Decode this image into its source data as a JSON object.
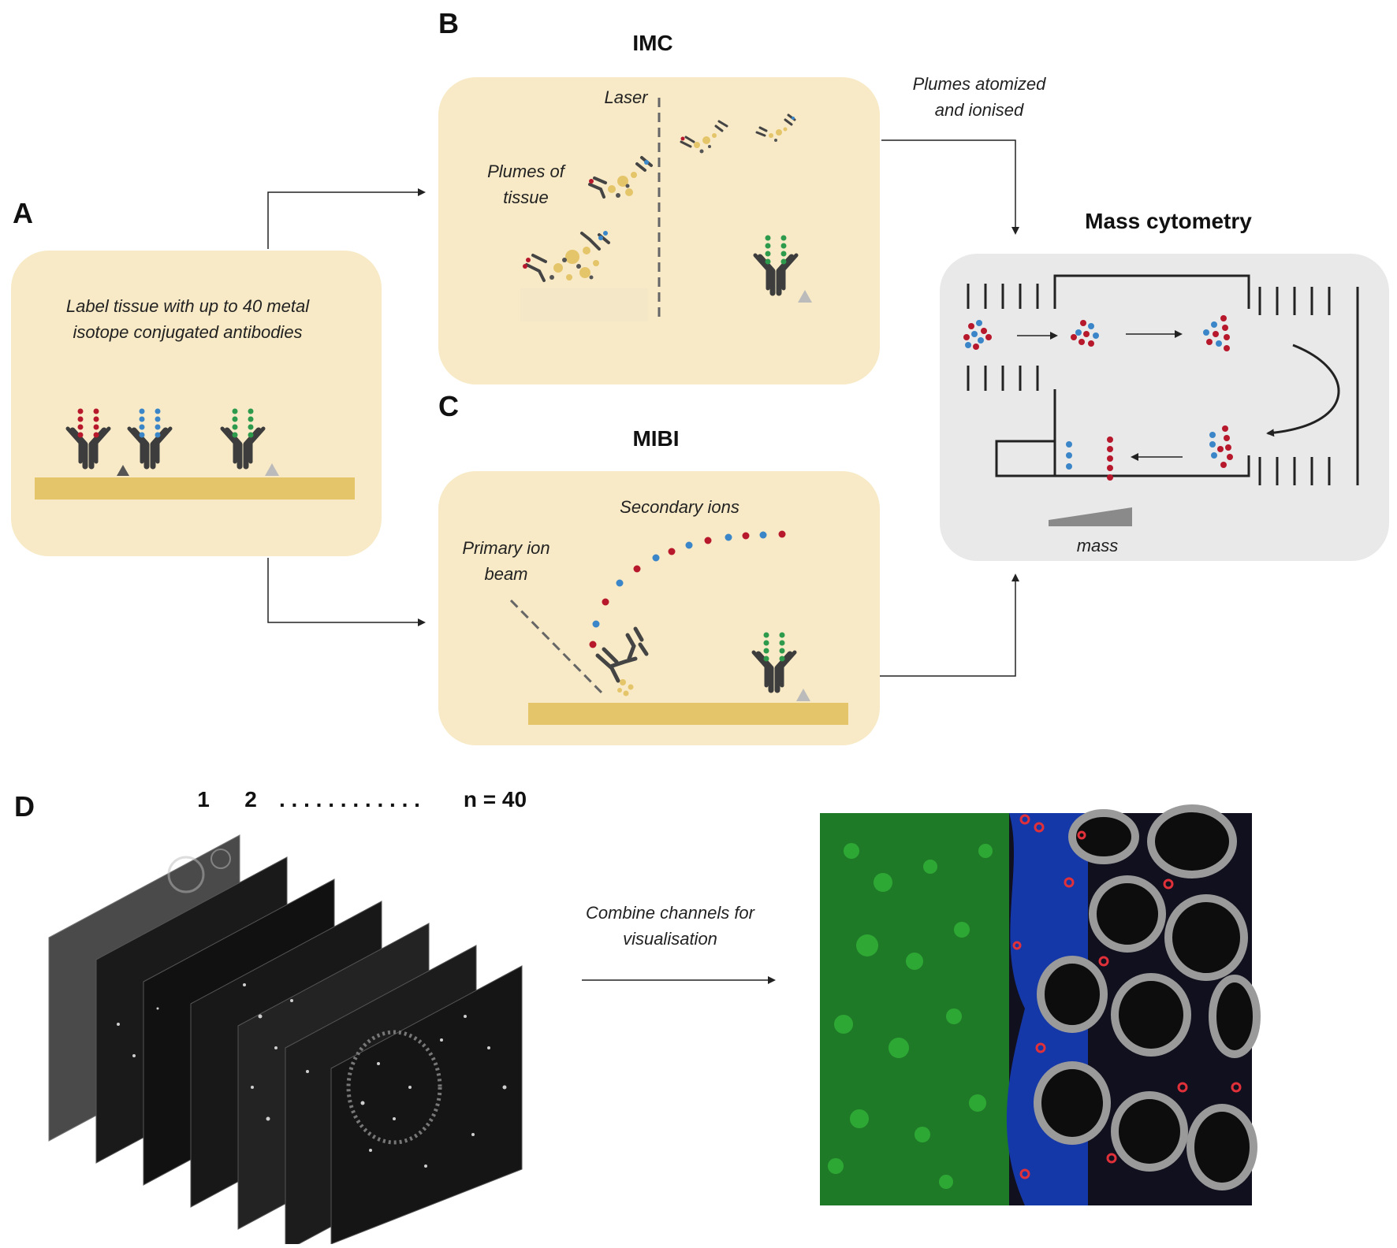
{
  "panels": {
    "A": {
      "letter": "A",
      "text_line1": "Label tissue with up to 40 metal",
      "text_line2": "isotope conjugated antibodies"
    },
    "B": {
      "letter": "B",
      "title": "IMC",
      "laser_label": "Laser",
      "plumes_line1": "Plumes of",
      "plumes_line2": "tissue"
    },
    "C": {
      "letter": "C",
      "title": "MIBI",
      "secondary_label": "Secondary ions",
      "primary_line1": "Primary ion",
      "primary_line2": "beam"
    },
    "mass": {
      "title": "Mass cytometry",
      "atomized_line1": "Plumes atomized",
      "atomized_line2": "and ionised",
      "mass_label": "mass"
    },
    "D": {
      "letter": "D",
      "channel_1": "1",
      "channel_2": "2",
      "dots": ". . . . . . . . . . . .",
      "channel_n": "n = 40",
      "combine_line1": "Combine channels for",
      "combine_line2": "visualisation"
    }
  },
  "colors": {
    "panel_fill": "#f8eac6",
    "mass_fill": "#e9e9e9",
    "tissue": "#e5c56a",
    "antibody": "#3d3d3d",
    "isotope_red": "#b8182c",
    "isotope_blue": "#3a86c8",
    "isotope_green": "#2e9a4c"
  }
}
